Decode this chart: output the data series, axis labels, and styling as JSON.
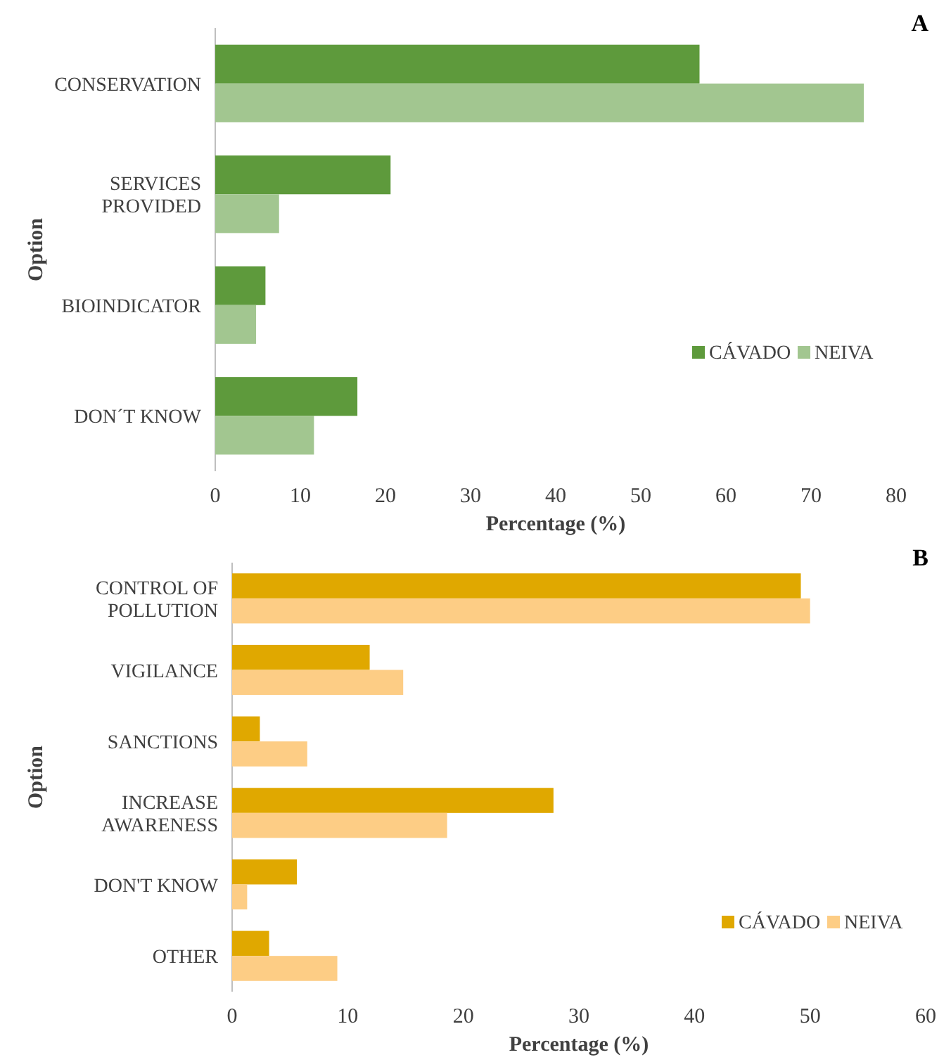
{
  "chart_data": [
    {
      "type": "bar",
      "orientation": "horizontal",
      "xlabel": "Percentage (%)",
      "ylabel": "Option",
      "annotations": [
        "A"
      ],
      "categories": [
        "CONSERVATION",
        "SERVICES PROVIDED",
        "BIOINDICATOR",
        "DON´T KNOW"
      ],
      "series": [
        {
          "name": "CÁVADO",
          "color": "#5e9a3c",
          "values": [
            56.9,
            20.6,
            5.9,
            16.7
          ]
        },
        {
          "name": "NEIVA",
          "color": "#a2c690",
          "values": [
            76.2,
            7.5,
            4.8,
            11.6
          ]
        }
      ],
      "xlim": [
        0,
        80
      ],
      "xticks": [
        0,
        10,
        20,
        30,
        40,
        50,
        60,
        70,
        80
      ],
      "grid": false,
      "legend": "bottom right"
    },
    {
      "type": "bar",
      "orientation": "horizontal",
      "xlabel": "Percentage (%)",
      "ylabel": "Option",
      "annotations": [
        "B"
      ],
      "categories": [
        "CONTROL OF POLLUTION",
        "VIGILANCE",
        "SANCTIONS",
        "INCREASE AWARENESS",
        "DON'T KNOW",
        "OTHER"
      ],
      "series": [
        {
          "name": "CÁVADO",
          "color": "#e0a800",
          "values": [
            49.2,
            11.9,
            2.4,
            27.8,
            5.6,
            3.2
          ]
        },
        {
          "name": "NEIVA",
          "color": "#fdcd85",
          "values": [
            50.0,
            14.8,
            6.5,
            18.6,
            1.3,
            9.1
          ]
        }
      ],
      "xlim": [
        0,
        60
      ],
      "xticks": [
        0,
        10,
        20,
        30,
        40,
        50,
        60
      ],
      "grid": false,
      "legend": "bottom right"
    }
  ]
}
